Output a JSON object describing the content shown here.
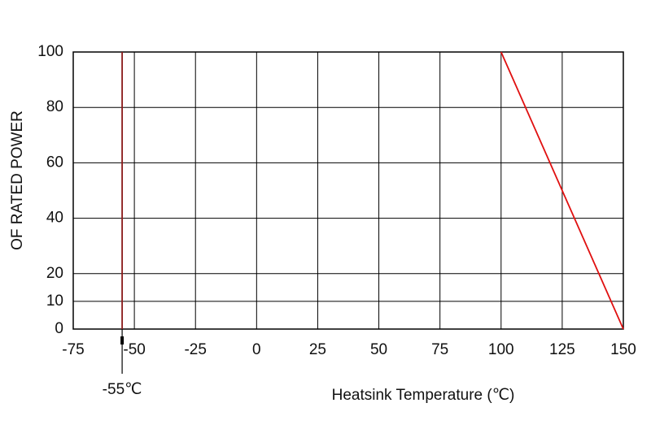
{
  "chart_data": {
    "type": "line",
    "xlabel": "Heatsink Temperature (℃)",
    "ylabel": "OF RATED POWER",
    "series": [
      {
        "color": "#e01010",
        "x": [
          100,
          150
        ],
        "values": [
          100,
          0
        ]
      },
      {
        "color": "#8b1a1a",
        "x": [
          -55,
          -55
        ],
        "values": [
          0,
          100
        ]
      }
    ],
    "annotations": [
      {
        "text": "-55℃",
        "x": -55
      }
    ],
    "xlim": [
      -75,
      150
    ],
    "xticks": [
      -75,
      -50,
      -25,
      0,
      25,
      50,
      75,
      100,
      125,
      150
    ],
    "ylim": [
      0,
      100
    ],
    "yticks": [
      0,
      10,
      20,
      40,
      60,
      80,
      100
    ],
    "grid": true
  }
}
